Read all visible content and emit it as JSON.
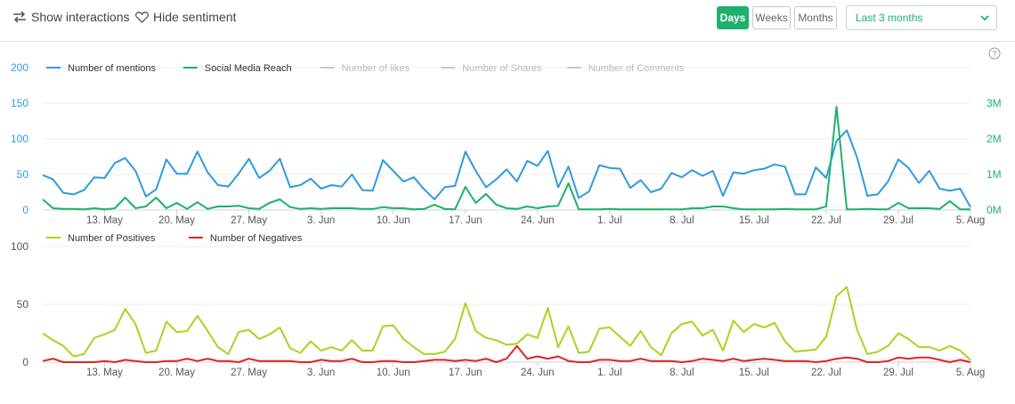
{
  "toolbar": {
    "show_interactions": "Show interactions",
    "hide_sentiment": "Hide sentiment",
    "periods": [
      "Days",
      "Weeks",
      "Months"
    ],
    "active_period": "Days",
    "range_value": "Last 3 months",
    "accent_color": "#1db16b"
  },
  "chart_data": [
    {
      "type": "line",
      "title": "",
      "x_labels": [
        "13. May",
        "20. May",
        "27. May",
        "3. Jun",
        "10. Jun",
        "17. Jun",
        "24. Jun",
        "1. Jul",
        "8. Jul",
        "15. Jul",
        "22. Jul",
        "29. Jul",
        "5. Aug"
      ],
      "left_axis": {
        "ticks": [
          "0",
          "50",
          "100",
          "150",
          "200"
        ],
        "ylim": [
          0,
          200
        ]
      },
      "right_axis": {
        "ticks": [
          "0M",
          "1M",
          "2M",
          "3M"
        ],
        "ylim": [
          0,
          4
        ]
      },
      "series": [
        {
          "name": "Number of mentions",
          "color": "#2e9be0",
          "visible": true,
          "axis": "left",
          "values": [
            49,
            43,
            24,
            22,
            28,
            46,
            45,
            66,
            73,
            55,
            19,
            29,
            71,
            51,
            51,
            82,
            53,
            35,
            33,
            51,
            72,
            45,
            55,
            72,
            32,
            35,
            44,
            30,
            35,
            33,
            50,
            28,
            27,
            70,
            55,
            40,
            46,
            29,
            15,
            32,
            34,
            82,
            55,
            32,
            43,
            57,
            40,
            69,
            62,
            83,
            32,
            61,
            17,
            26,
            63,
            59,
            58,
            31,
            42,
            25,
            30,
            52,
            46,
            56,
            48,
            55,
            20,
            53,
            51,
            56,
            58,
            64,
            61,
            22,
            22,
            60,
            45,
            97,
            112,
            74,
            20,
            22,
            40,
            71,
            59,
            38,
            55,
            30,
            27,
            30,
            4
          ]
        },
        {
          "name": "Social Media Reach",
          "color": "#1db16b",
          "visible": true,
          "axis": "right",
          "values": [
            0.3,
            0.05,
            0.03,
            0.03,
            0.02,
            0.05,
            0.02,
            0.05,
            0.35,
            0.05,
            0.1,
            0.35,
            0.05,
            0.2,
            0.03,
            0.22,
            0.03,
            0.1,
            0.1,
            0.12,
            0.05,
            0.03,
            0.2,
            0.3,
            0.08,
            0.03,
            0.05,
            0.03,
            0.05,
            0.05,
            0.05,
            0.03,
            0.03,
            0.08,
            0.05,
            0.05,
            0.02,
            0.03,
            0.15,
            0.03,
            0.02,
            0.65,
            0.2,
            0.45,
            0.15,
            0.05,
            0.03,
            0.1,
            0.05,
            0.1,
            0.12,
            0.75,
            0.02,
            0.02,
            0.02,
            0.03,
            0.02,
            0.02,
            0.02,
            0.02,
            0.02,
            0.02,
            0.02,
            0.05,
            0.05,
            0.1,
            0.1,
            0.05,
            0.02,
            0.02,
            0.02,
            0.02,
            0.03,
            0.02,
            0.02,
            0.02,
            0.1,
            2.9,
            0.02,
            0.02,
            0.03,
            0.02,
            0.02,
            0.2,
            0.05,
            0.05,
            0.05,
            0.03,
            0.25,
            0.02,
            0.02
          ]
        },
        {
          "name": "Number of likes",
          "color": "#c8c8c8",
          "visible": false,
          "axis": "left",
          "values": []
        },
        {
          "name": "Number of Shares",
          "color": "#c8c8c8",
          "visible": false,
          "axis": "left",
          "values": []
        },
        {
          "name": "Number of Comments",
          "color": "#c8c8c8",
          "visible": false,
          "axis": "left",
          "values": []
        }
      ]
    },
    {
      "type": "line",
      "title": "",
      "x_labels": [
        "13. May",
        "20. May",
        "27. May",
        "3. Jun",
        "10. Jun",
        "17. Jun",
        "24. Jun",
        "1. Jul",
        "8. Jul",
        "15. Jul",
        "22. Jul",
        "29. Jul",
        "5. Aug"
      ],
      "left_axis": {
        "ticks": [
          "0",
          "50",
          "100"
        ],
        "ylim": [
          0,
          100
        ]
      },
      "series": [
        {
          "name": "Number of Positives",
          "color": "#a8d41e",
          "values": [
            25,
            19,
            14,
            5,
            7,
            21,
            24,
            28,
            46,
            33,
            8,
            10,
            35,
            26,
            27,
            40,
            27,
            13,
            7,
            26,
            28,
            20,
            24,
            30,
            12,
            8,
            18,
            10,
            13,
            10,
            19,
            10,
            10,
            31,
            32,
            20,
            13,
            7,
            7,
            9,
            20,
            51,
            27,
            21,
            19,
            15,
            16,
            24,
            21,
            47,
            13,
            31,
            8,
            9,
            29,
            30,
            22,
            14,
            27,
            13,
            6,
            25,
            33,
            35,
            23,
            28,
            10,
            36,
            26,
            33,
            30,
            34,
            18,
            9,
            10,
            11,
            22,
            57,
            65,
            28,
            7,
            9,
            14,
            25,
            20,
            13,
            13,
            10,
            14,
            10,
            2
          ]
        },
        {
          "name": "Number of Negatives",
          "color": "#e02424",
          "values": [
            1,
            3,
            0,
            0,
            0,
            0,
            1,
            0,
            2,
            1,
            0,
            0,
            1,
            1,
            3,
            1,
            3,
            1,
            1,
            0,
            3,
            1,
            1,
            1,
            1,
            0,
            0,
            2,
            1,
            1,
            3,
            0,
            0,
            1,
            1,
            0,
            0,
            1,
            2,
            2,
            1,
            2,
            1,
            3,
            0,
            3,
            14,
            3,
            5,
            3,
            5,
            1,
            0,
            0,
            2,
            2,
            1,
            1,
            3,
            1,
            1,
            1,
            0,
            1,
            3,
            2,
            1,
            3,
            1,
            2,
            3,
            2,
            1,
            1,
            1,
            0,
            1,
            3,
            4,
            3,
            0,
            0,
            1,
            4,
            3,
            4,
            4,
            2,
            0,
            2,
            0
          ]
        }
      ]
    }
  ]
}
